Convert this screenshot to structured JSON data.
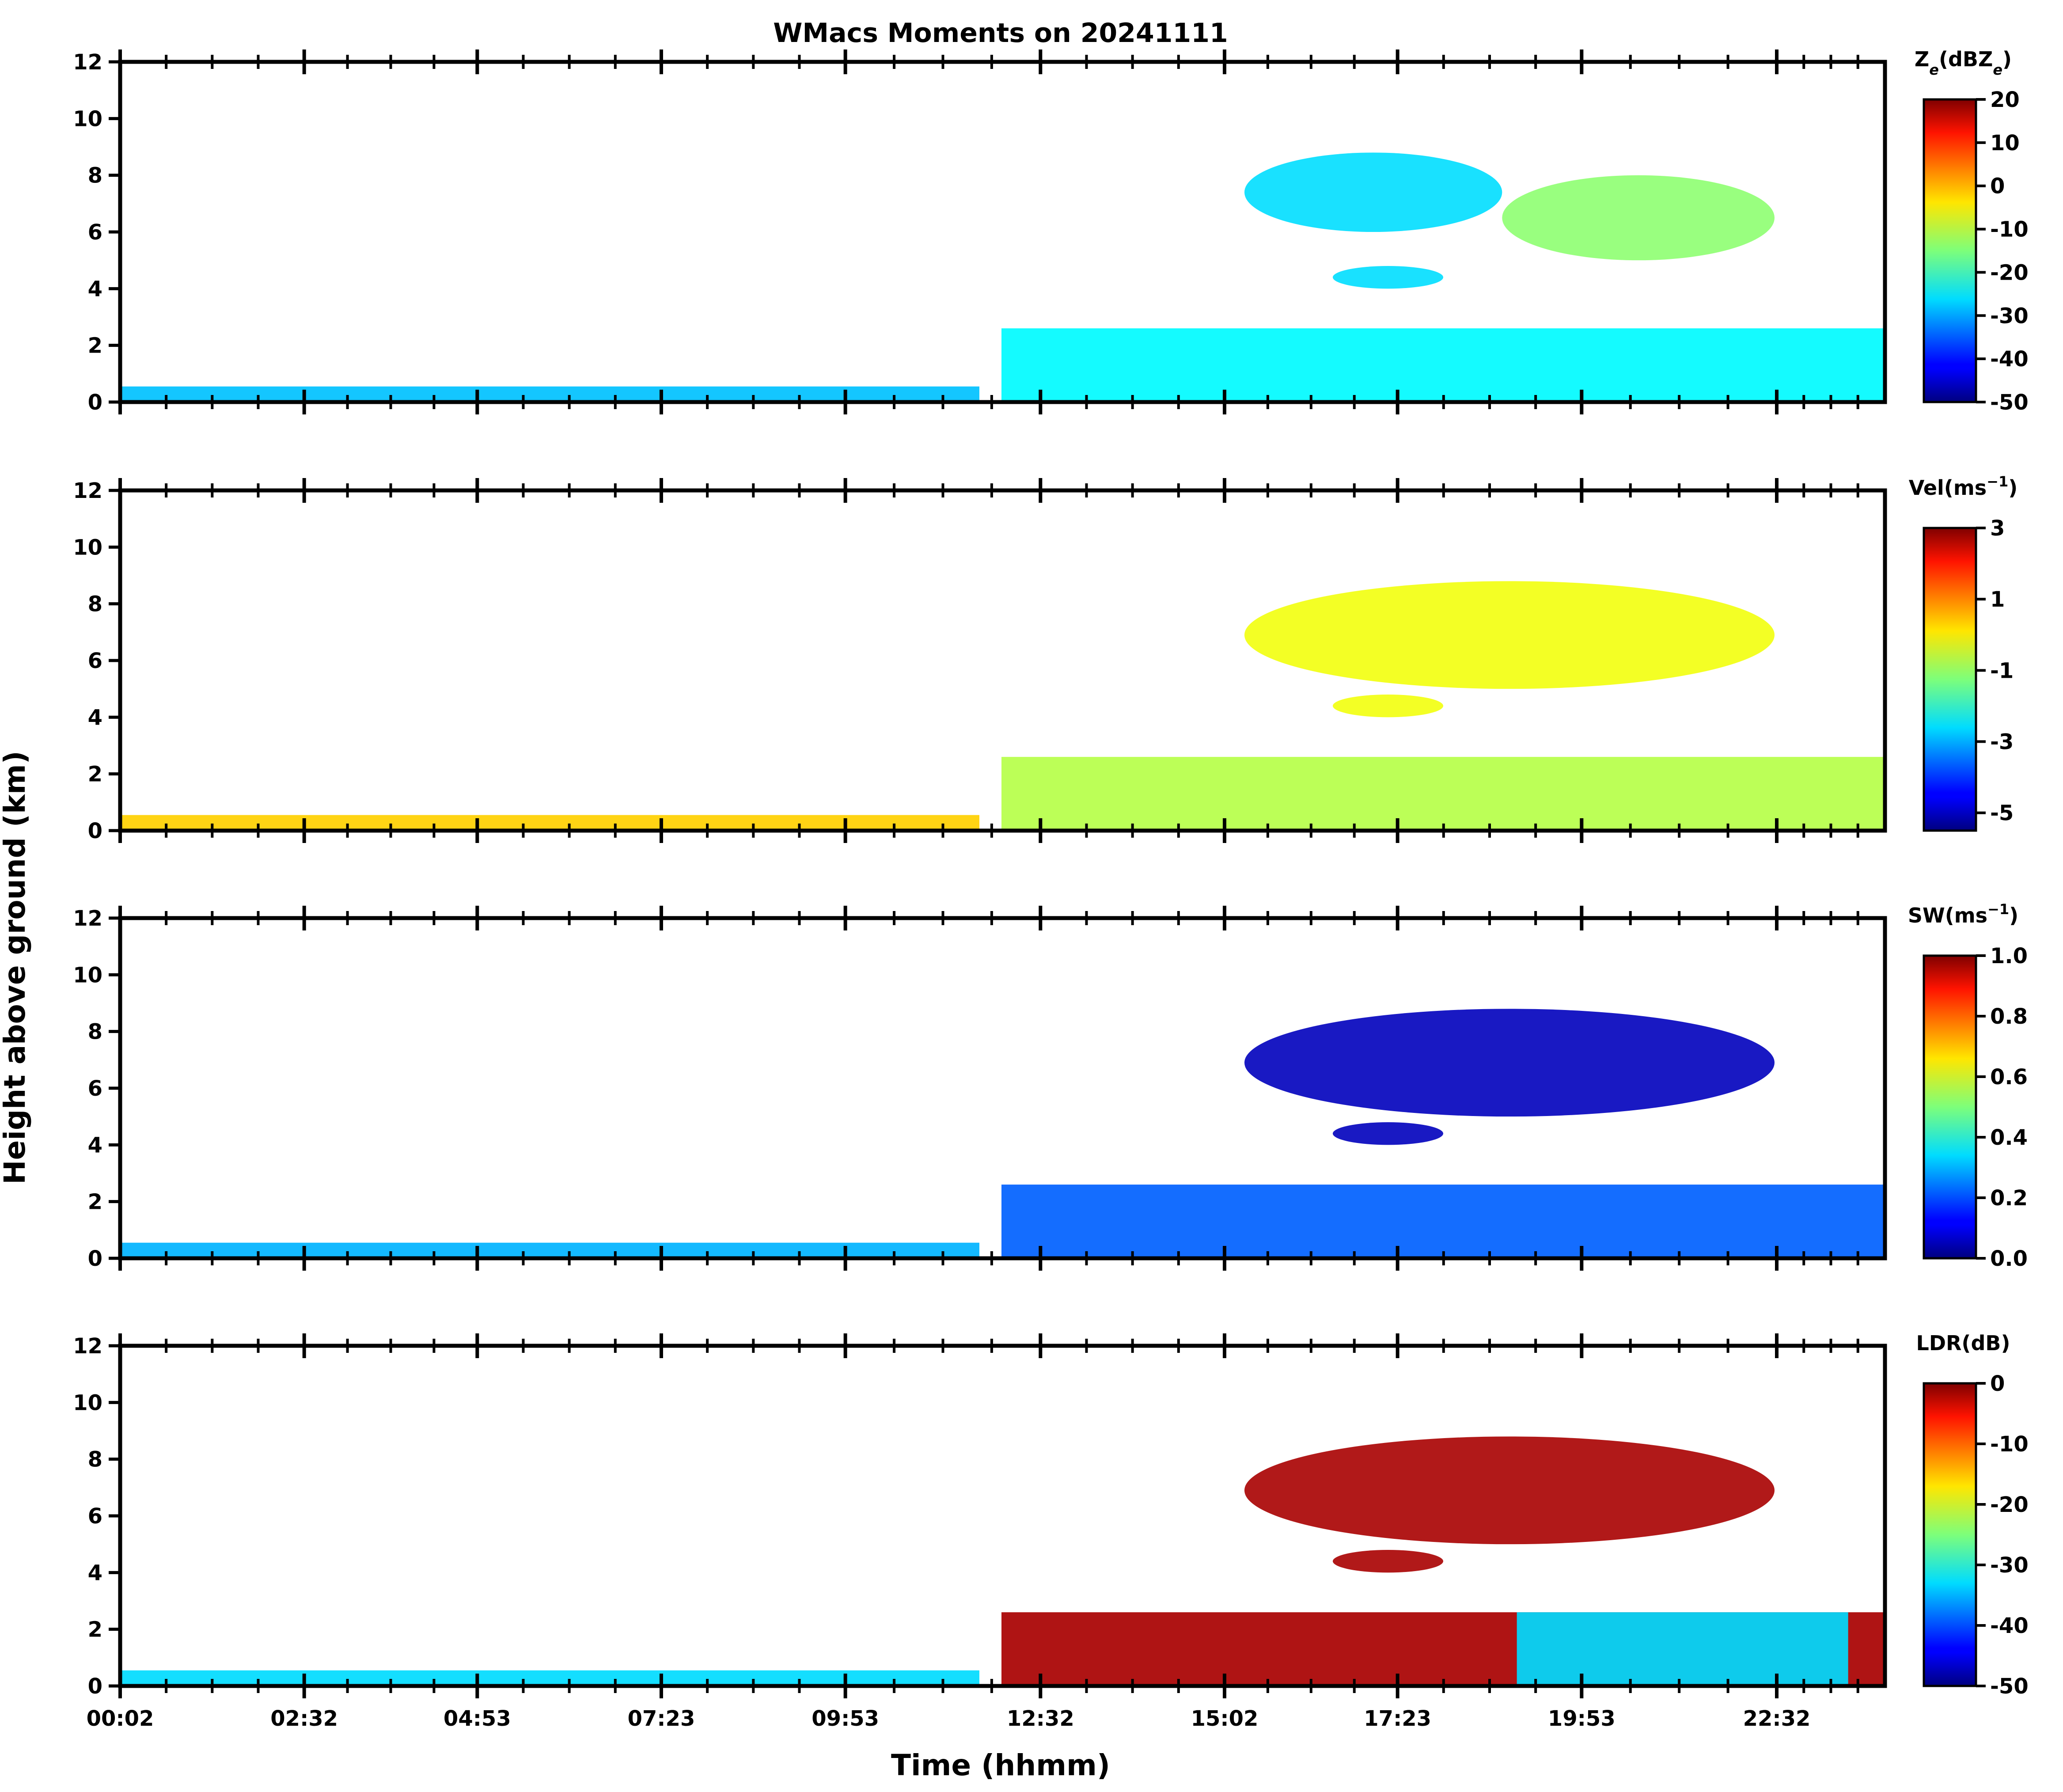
{
  "figure": {
    "title": "WMacs Moments on 20241111",
    "xlabel": "Time (hhmm)",
    "ylabel": "Height above ground (km)"
  },
  "chart_data": {
    "type": "heatmap",
    "title": "WMacs Moments on 20241111",
    "xlabel": "Time (hhmm)",
    "ylabel": "Height above ground (km)",
    "x_tick_labels": [
      "00:02",
      "02:32",
      "04:53",
      "07:23",
      "09:53",
      "12:32",
      "15:02",
      "17:23",
      "19:53",
      "22:32"
    ],
    "x_range_hours": [
      0.03,
      24.0
    ],
    "x_tick_hours": [
      0.03,
      2.53,
      4.88,
      7.38,
      9.88,
      12.53,
      15.03,
      17.38,
      19.88,
      22.53
    ],
    "y_range_km": [
      0,
      12
    ],
    "y_ticks": [
      0,
      2,
      4,
      6,
      8,
      10,
      12
    ],
    "panels": [
      {
        "id": "ze",
        "colorbar_label": "Ze(dBZe)",
        "label_main": "Z",
        "label_sub1": "e",
        "label_mid": "(dBZ",
        "label_sub2": "e",
        "label_end": ")",
        "vmin": -50,
        "vmax": 20,
        "colorbar_ticks": [
          "20",
          "10",
          "0",
          "-10",
          "-20",
          "-30",
          "-40",
          "-50"
        ],
        "colorbar_tick_values": [
          20,
          10,
          0,
          -10,
          -20,
          -30,
          -40,
          -50
        ],
        "regions": [
          {
            "kind": "band",
            "t0": 0.03,
            "t1": 11.7,
            "h0": 0.0,
            "h1": 0.55,
            "v": -28
          },
          {
            "kind": "band",
            "t0": 12.0,
            "t1": 24.0,
            "h0": 0.0,
            "h1": 2.6,
            "v": -24
          },
          {
            "kind": "blob",
            "t0": 15.3,
            "t1": 18.8,
            "h0": 6.0,
            "h1": 8.8,
            "v": -26
          },
          {
            "kind": "blob",
            "t0": 18.8,
            "t1": 22.5,
            "h0": 5.0,
            "h1": 8.0,
            "v": -14
          },
          {
            "kind": "blob",
            "t0": 16.5,
            "t1": 18.0,
            "h0": 4.0,
            "h1": 4.8,
            "v": -26
          }
        ]
      },
      {
        "id": "vel",
        "colorbar_label": "Vel(ms-1)",
        "label_main": "Vel(ms",
        "label_sup": "−1",
        "label_end": ")",
        "vmin": -5.5,
        "vmax": 3,
        "colorbar_ticks": [
          "3",
          "1",
          "-1",
          "-3",
          "-5"
        ],
        "colorbar_tick_values": [
          3,
          1,
          -1,
          -3,
          -5
        ],
        "regions": [
          {
            "kind": "band",
            "t0": 0.03,
            "t1": 11.7,
            "h0": 0.0,
            "h1": 0.55,
            "v": 0.2
          },
          {
            "kind": "band",
            "t0": 12.0,
            "t1": 24.0,
            "h0": 0.0,
            "h1": 2.6,
            "v": -0.8
          },
          {
            "kind": "blob",
            "t0": 15.3,
            "t1": 22.5,
            "h0": 5.0,
            "h1": 8.8,
            "v": -0.3
          },
          {
            "kind": "blob",
            "t0": 16.5,
            "t1": 18.0,
            "h0": 4.0,
            "h1": 4.8,
            "v": -0.3
          }
        ]
      },
      {
        "id": "sw",
        "colorbar_label": "SW(ms-1)",
        "label_main": "SW(ms",
        "label_sup": "−1",
        "label_end": ")",
        "vmin": 0.0,
        "vmax": 1.0,
        "colorbar_ticks": [
          "1.0",
          "0.8",
          "0.6",
          "0.4",
          "0.2",
          "0.0"
        ],
        "colorbar_tick_values": [
          1.0,
          0.8,
          0.6,
          0.4,
          0.2,
          0.0
        ],
        "regions": [
          {
            "kind": "band",
            "t0": 0.03,
            "t1": 11.7,
            "h0": 0.0,
            "h1": 0.55,
            "v": 0.3
          },
          {
            "kind": "band",
            "t0": 12.0,
            "t1": 24.0,
            "h0": 0.0,
            "h1": 2.6,
            "v": 0.22
          },
          {
            "kind": "blob",
            "t0": 15.3,
            "t1": 22.5,
            "h0": 5.0,
            "h1": 8.8,
            "v": 0.06
          },
          {
            "kind": "blob",
            "t0": 16.5,
            "t1": 18.0,
            "h0": 4.0,
            "h1": 4.8,
            "v": 0.06
          }
        ]
      },
      {
        "id": "ldr",
        "colorbar_label": "LDR(dB)",
        "label_main": "LDR(dB)",
        "vmin": -50,
        "vmax": 0,
        "colorbar_ticks": [
          "0",
          "-10",
          "-20",
          "-30",
          "-40",
          "-50"
        ],
        "colorbar_tick_values": [
          0,
          -10,
          -20,
          -30,
          -40,
          -50
        ],
        "regions": [
          {
            "kind": "band",
            "t0": 0.03,
            "t1": 11.7,
            "h0": 0.0,
            "h1": 0.55,
            "v": -33
          },
          {
            "kind": "band",
            "t0": 12.0,
            "t1": 24.0,
            "h0": 0.0,
            "h1": 2.6,
            "v": -2
          },
          {
            "kind": "band",
            "t0": 19.0,
            "t1": 23.5,
            "h0": 0.0,
            "h1": 2.6,
            "v": -33
          },
          {
            "kind": "blob",
            "t0": 15.3,
            "t1": 22.5,
            "h0": 5.0,
            "h1": 8.8,
            "v": -2
          },
          {
            "kind": "blob",
            "t0": 16.5,
            "t1": 18.0,
            "h0": 4.0,
            "h1": 4.8,
            "v": -2
          }
        ]
      }
    ]
  },
  "colors": {
    "colormap": "jet",
    "axis_color": "#000000",
    "background": "#ffffff"
  }
}
